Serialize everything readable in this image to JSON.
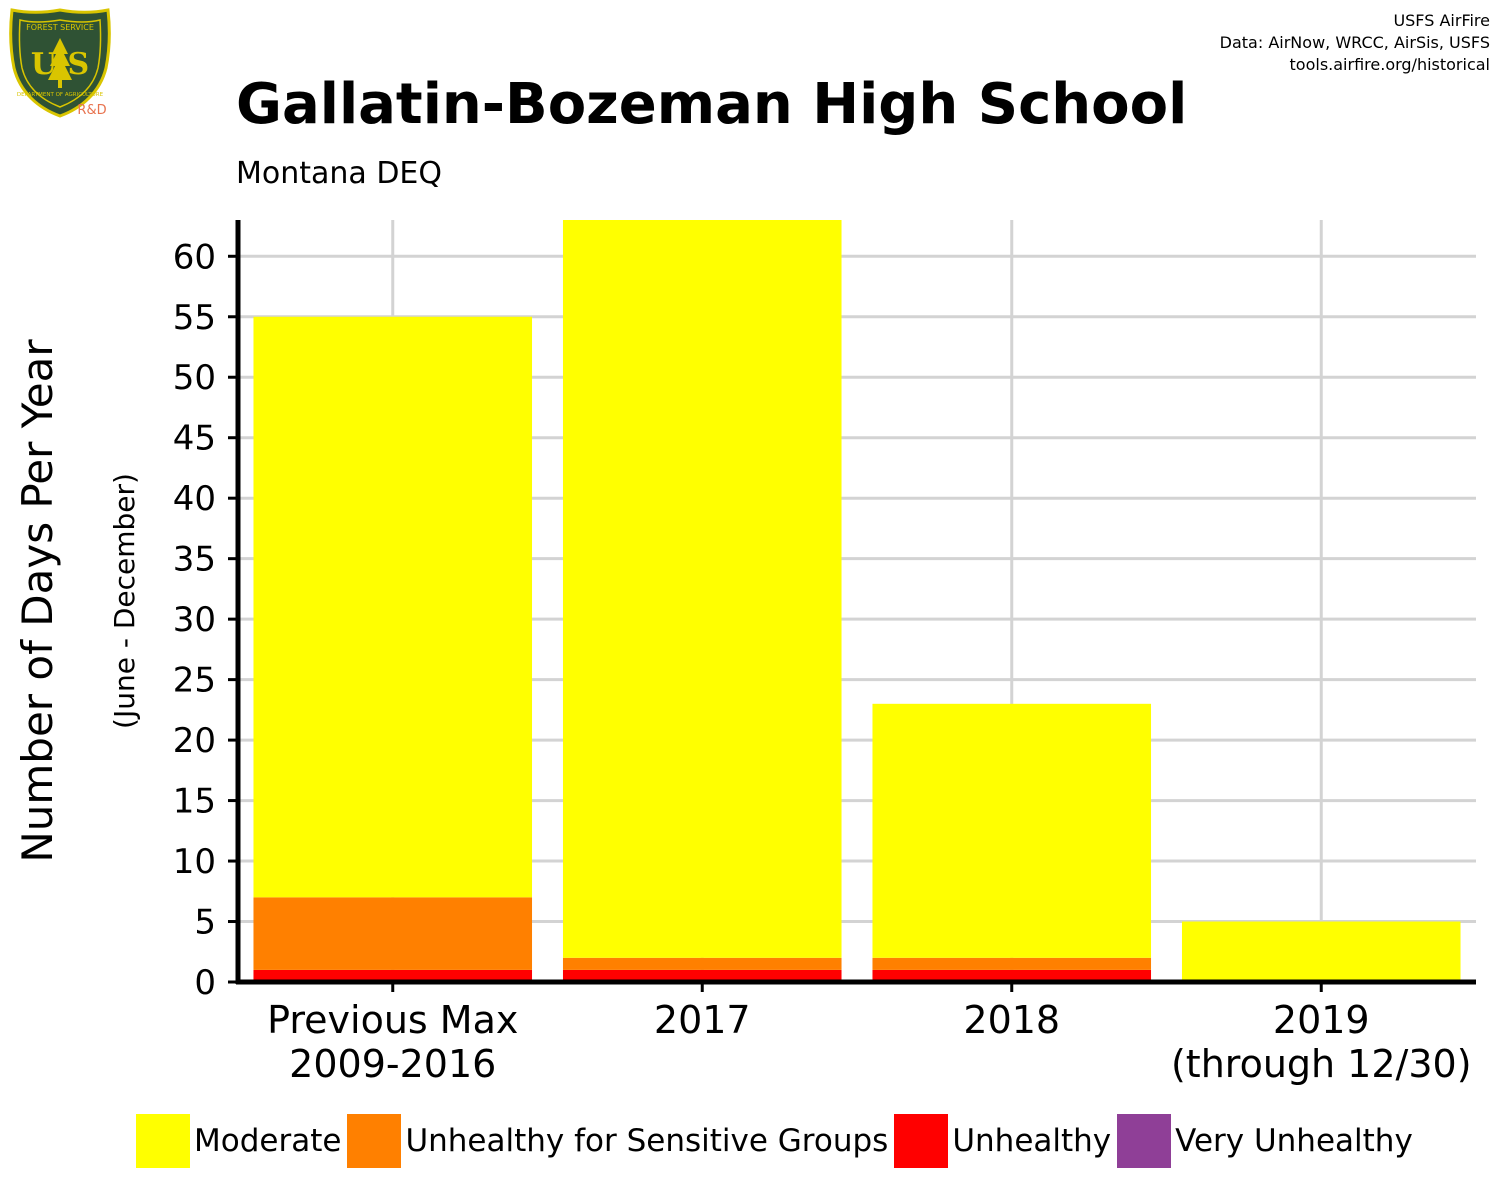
{
  "header": {
    "title": "Gallatin-Bozeman High School",
    "subtitle": "Montana DEQ",
    "credits": [
      "USFS AirFire",
      "Data: AirNow, WRCC, AirSis, USFS",
      "tools.airfire.org/historical"
    ],
    "logo": {
      "text_top": "FOREST SERVICE",
      "text_initials": "U S",
      "text_bottom": "DEPARTMENT OF AGRICULTURE",
      "badge": "R&D",
      "colors": {
        "shield": "#2f5234",
        "border": "#d9c500",
        "badge": "#e8734f"
      }
    }
  },
  "chart_data": {
    "type": "bar",
    "stacked": true,
    "title": "Gallatin-Bozeman High School",
    "subtitle": "Montana DEQ",
    "ylabel": "Number of Days Per Year",
    "ylabel_secondary": "(June - December)",
    "ylim": [
      0,
      63
    ],
    "yticks": [
      0,
      5,
      10,
      15,
      20,
      25,
      30,
      35,
      40,
      45,
      50,
      55,
      60
    ],
    "grid": true,
    "legend_position": "bottom",
    "categories": [
      [
        "Previous Max",
        "2009-2016"
      ],
      [
        "2017"
      ],
      [
        "2018"
      ],
      [
        "2019",
        "(through 12/30)"
      ]
    ],
    "series": [
      {
        "name": "Unhealthy",
        "color": "#ff0000",
        "values": [
          1,
          1,
          1,
          0
        ]
      },
      {
        "name": "Unhealthy for Sensitive Groups",
        "color": "#ff8000",
        "values": [
          6,
          1,
          1,
          0
        ]
      },
      {
        "name": "Moderate",
        "color": "#ffff00",
        "values": [
          48,
          61,
          21,
          5
        ]
      },
      {
        "name": "Very Unhealthy",
        "color": "#8f3f97",
        "values": [
          0,
          0,
          0,
          0
        ]
      }
    ]
  },
  "legend": [
    {
      "label": "Moderate",
      "color": "#ffff00"
    },
    {
      "label": "Unhealthy for Sensitive Groups",
      "color": "#ff8000"
    },
    {
      "label": "Unhealthy",
      "color": "#ff0000"
    },
    {
      "label": "Very Unhealthy",
      "color": "#8f3f97"
    }
  ]
}
